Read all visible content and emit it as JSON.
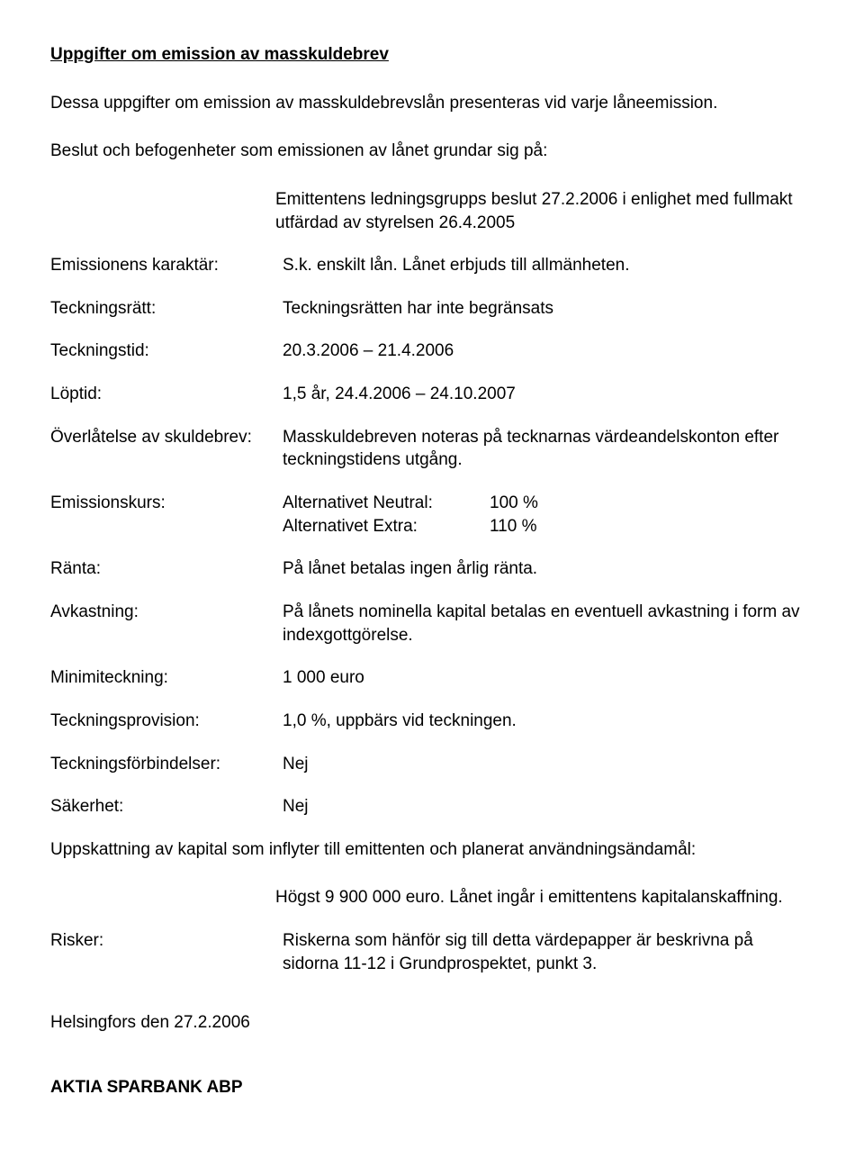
{
  "title": "Uppgifter om emission av masskuldebrev",
  "intro": "Dessa uppgifter om emission av masskuldebrevslån presenteras vid varje låneemission.",
  "decision_heading": "Beslut och befogenheter som emissionen av lånet grundar sig på:",
  "decision_value": "Emittentens ledningsgrupps beslut 27.2.2006 i enlighet med fullmakt utfärdad av styrelsen 26.4.2005",
  "rows": {
    "karaktar": {
      "label": "Emissionens karaktär:",
      "value": "S.k. enskilt lån. Lånet erbjuds till allmänheten."
    },
    "teckningsratt": {
      "label": "Teckningsrätt:",
      "value": "Teckningsrätten har inte begränsats"
    },
    "teckningstid": {
      "label": "Teckningstid:",
      "value": "20.3.2006 – 21.4.2006"
    },
    "loptid": {
      "label": "Löptid:",
      "value": "1,5 år, 24.4.2006 – 24.10.2007"
    },
    "overlatelse": {
      "label": "Överlåtelse av skuldebrev:",
      "value": "Masskuldebreven noteras på tecknarnas värdeandelskonton efter teckningstidens utgång."
    },
    "emissionskurs": {
      "label": "Emissionskurs:",
      "line1_label": "Alternativet Neutral:",
      "line1_value": "100 %",
      "line2_label": "Alternativet Extra:",
      "line2_value": "110 %"
    },
    "ranta": {
      "label": "Ränta:",
      "value": "På lånet betalas ingen årlig ränta."
    },
    "avkastning": {
      "label": "Avkastning:",
      "value": "På lånets nominella kapital betalas en eventuell avkastning i form av indexgottgörelse."
    },
    "minimiteckning": {
      "label": "Minimiteckning:",
      "value": "1 000 euro"
    },
    "teckningsprovision": {
      "label": "Teckningsprovision:",
      "value": "1,0 %, uppbärs vid teckningen."
    },
    "teckningsforbindelser": {
      "label": "Teckningsförbindelser:",
      "value": "Nej"
    },
    "sakerhet": {
      "label": "Säkerhet:",
      "value": "Nej"
    }
  },
  "estimate_heading": "Uppskattning av kapital som inflyter till emittenten och planerat användningsändamål:",
  "estimate_value": "Högst 9 900 000 euro. Lånet ingår i emittentens kapitalanskaffning.",
  "risker": {
    "label": "Risker:",
    "value": "Riskerna som hänför sig till detta värdepapper är beskrivna på sidorna 11-12 i Grundprospektet, punkt 3."
  },
  "footer_date": "Helsingfors den 27.2.2006",
  "footer_company": "AKTIA SPARBANK ABP"
}
